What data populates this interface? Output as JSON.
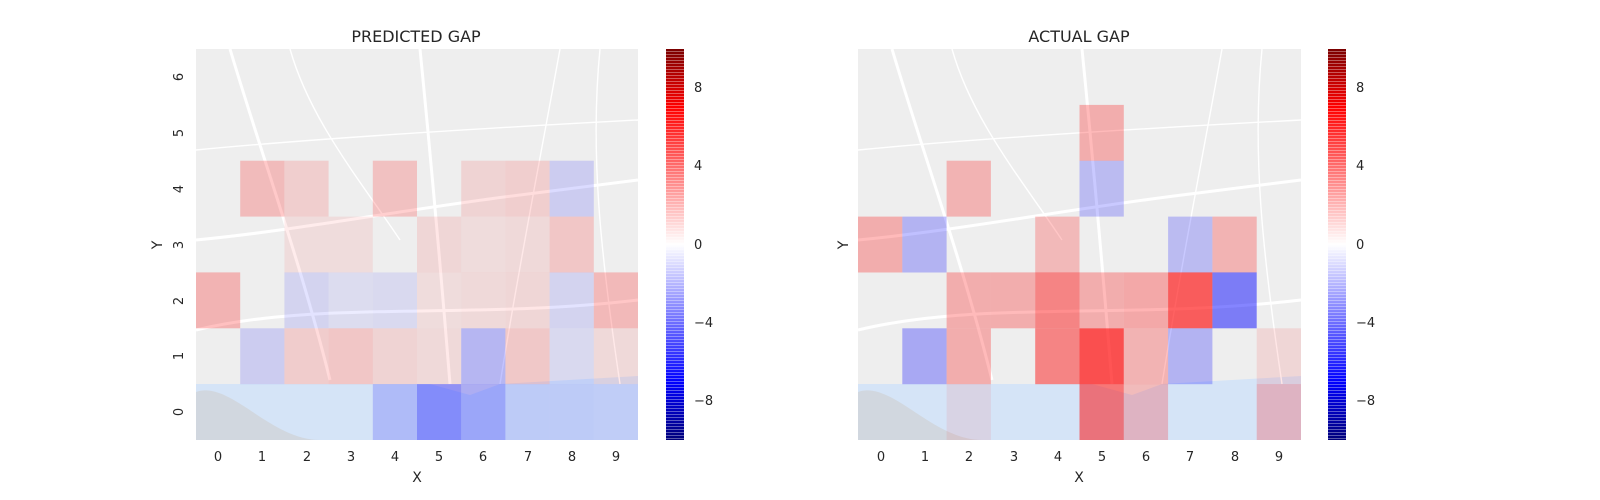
{
  "colorbar_ticks": [
    8,
    4,
    0,
    -4,
    -8
  ],
  "colorbar_tick_labels": [
    "8",
    "4",
    "0",
    "−4",
    "−8"
  ],
  "colors": {
    "positive": "#ff0000",
    "negative": "#0000ff",
    "zero": "#ffffff",
    "map_background": "#eeeeee",
    "water": "#d5e4f7"
  },
  "chart_data": [
    {
      "type": "heatmap",
      "title": "PREDICTED GAP",
      "xlabel": "X",
      "ylabel": "Y",
      "x_categories": [
        "0",
        "1",
        "2",
        "3",
        "4",
        "5",
        "6",
        "7",
        "8",
        "9"
      ],
      "y_categories": [
        "0",
        "1",
        "2",
        "3",
        "4",
        "5",
        "6"
      ],
      "cells": [
        {
          "x": 1,
          "y": 4,
          "value": 1.5
        },
        {
          "x": 2,
          "y": 4,
          "value": 0.8
        },
        {
          "x": 4,
          "y": 4,
          "value": 1.3
        },
        {
          "x": 6,
          "y": 4,
          "value": 0.6
        },
        {
          "x": 7,
          "y": 4,
          "value": 0.8
        },
        {
          "x": 8,
          "y": 4,
          "value": -0.9
        },
        {
          "x": 2,
          "y": 3,
          "value": 0.3
        },
        {
          "x": 3,
          "y": 3,
          "value": 0.3
        },
        {
          "x": 5,
          "y": 3,
          "value": 0.5
        },
        {
          "x": 6,
          "y": 3,
          "value": 0.3
        },
        {
          "x": 7,
          "y": 3,
          "value": 0.4
        },
        {
          "x": 8,
          "y": 3,
          "value": 1.1
        },
        {
          "x": 0,
          "y": 2,
          "value": 1.8
        },
        {
          "x": 2,
          "y": 2,
          "value": -0.6
        },
        {
          "x": 3,
          "y": 2,
          "value": -0.3
        },
        {
          "x": 4,
          "y": 2,
          "value": -0.4
        },
        {
          "x": 5,
          "y": 2,
          "value": 0.3
        },
        {
          "x": 6,
          "y": 2,
          "value": 0.4
        },
        {
          "x": 7,
          "y": 2,
          "value": 0.5
        },
        {
          "x": 8,
          "y": 2,
          "value": -0.6
        },
        {
          "x": 9,
          "y": 2,
          "value": 1.6
        },
        {
          "x": 1,
          "y": 1,
          "value": -0.9
        },
        {
          "x": 2,
          "y": 1,
          "value": 0.9
        },
        {
          "x": 3,
          "y": 1,
          "value": 1.1
        },
        {
          "x": 4,
          "y": 1,
          "value": 0.6
        },
        {
          "x": 5,
          "y": 1,
          "value": 0.4
        },
        {
          "x": 6,
          "y": 1,
          "value": -1.7
        },
        {
          "x": 7,
          "y": 1,
          "value": 1.0
        },
        {
          "x": 8,
          "y": 1,
          "value": -0.4
        },
        {
          "x": 9,
          "y": 1,
          "value": 0.4
        },
        {
          "x": 4,
          "y": 0,
          "value": -1.2
        },
        {
          "x": 5,
          "y": 0,
          "value": -3.0
        },
        {
          "x": 6,
          "y": 0,
          "value": -2.0
        },
        {
          "x": 7,
          "y": 0,
          "value": -0.6
        },
        {
          "x": 8,
          "y": 0,
          "value": -0.6
        },
        {
          "x": 9,
          "y": 0,
          "value": -0.5
        }
      ],
      "colorbar_range": [
        -10,
        10
      ]
    },
    {
      "type": "heatmap",
      "title": "ACTUAL GAP",
      "xlabel": "X",
      "ylabel": "Y",
      "x_categories": [
        "0",
        "1",
        "2",
        "3",
        "4",
        "5",
        "6",
        "7",
        "8",
        "9"
      ],
      "y_categories": [
        "0",
        "1",
        "2",
        "3",
        "4",
        "5",
        "6"
      ],
      "cells": [
        {
          "x": 5,
          "y": 5,
          "value": 2.0
        },
        {
          "x": 2,
          "y": 4,
          "value": 1.8
        },
        {
          "x": 5,
          "y": 4,
          "value": -1.5
        },
        {
          "x": 0,
          "y": 3,
          "value": 2.0
        },
        {
          "x": 1,
          "y": 3,
          "value": -1.8
        },
        {
          "x": 4,
          "y": 3,
          "value": 1.6
        },
        {
          "x": 7,
          "y": 3,
          "value": -1.5
        },
        {
          "x": 8,
          "y": 3,
          "value": 1.8
        },
        {
          "x": 2,
          "y": 2,
          "value": 2.0
        },
        {
          "x": 3,
          "y": 2,
          "value": 2.0
        },
        {
          "x": 4,
          "y": 2,
          "value": 3.5
        },
        {
          "x": 5,
          "y": 2,
          "value": 2.0
        },
        {
          "x": 6,
          "y": 2,
          "value": 2.2
        },
        {
          "x": 7,
          "y": 2,
          "value": 5.0
        },
        {
          "x": 8,
          "y": 2,
          "value": -3.8
        },
        {
          "x": 1,
          "y": 1,
          "value": -2.2
        },
        {
          "x": 2,
          "y": 1,
          "value": 2.0
        },
        {
          "x": 4,
          "y": 1,
          "value": 3.5
        },
        {
          "x": 5,
          "y": 1,
          "value": 5.5
        },
        {
          "x": 6,
          "y": 1,
          "value": 1.8
        },
        {
          "x": 7,
          "y": 1,
          "value": -1.8
        },
        {
          "x": 9,
          "y": 1,
          "value": 0.5
        },
        {
          "x": 2,
          "y": 0,
          "value": 0.3
        },
        {
          "x": 5,
          "y": 0,
          "value": 4.0
        },
        {
          "x": 6,
          "y": 0,
          "value": 1.5
        },
        {
          "x": 9,
          "y": 0,
          "value": 1.5
        }
      ],
      "colorbar_range": [
        -10,
        10
      ]
    }
  ]
}
